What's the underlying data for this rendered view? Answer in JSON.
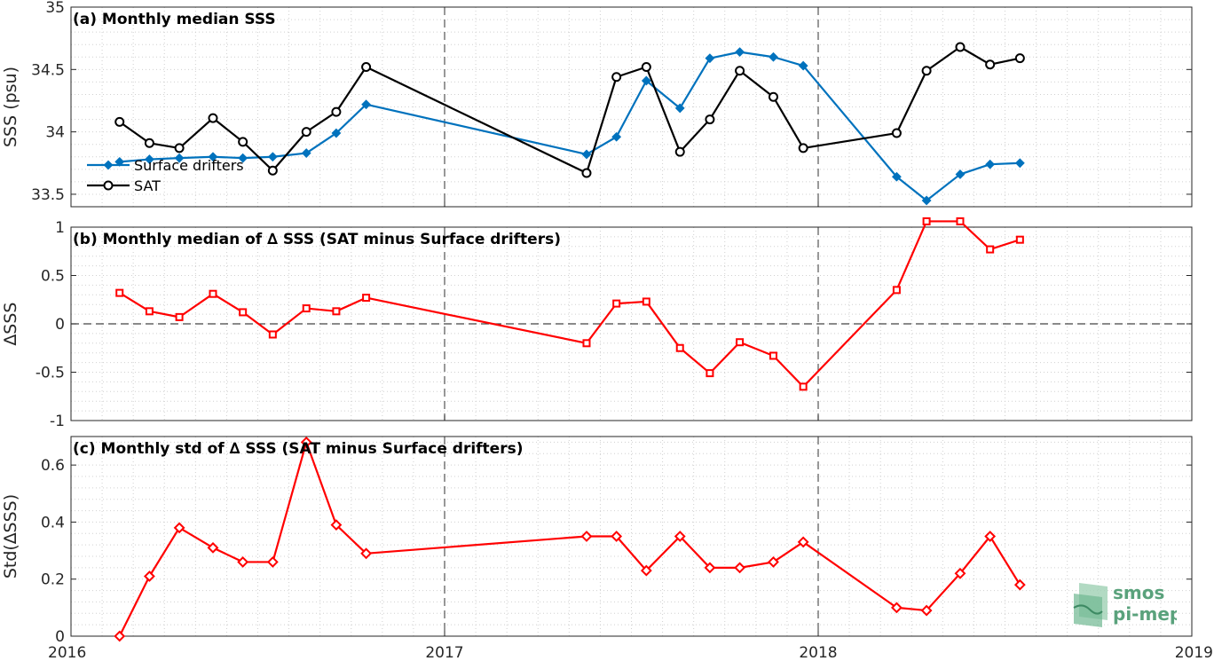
{
  "logo": {
    "line1": "smos",
    "line2": "pi-mep"
  },
  "chart_data": [
    {
      "type": "line",
      "title": "(a) Monthly median SSS",
      "ylabel": "SSS (psu)",
      "xlim": [
        2016,
        2019
      ],
      "x_ticks": [
        2016,
        2017,
        2018,
        2019
      ],
      "x_tick_labels": [
        "2016",
        "2017",
        "2018",
        "2019"
      ],
      "ylim": [
        33.4,
        35
      ],
      "y_ticks": [
        33.5,
        34,
        34.5,
        35
      ],
      "y_tick_labels": [
        "33.5",
        "34",
        "34.5",
        "35"
      ],
      "grid": true,
      "legend": "lower-left",
      "x": [
        2016.13,
        2016.21,
        2016.29,
        2016.38,
        2016.46,
        2016.54,
        2016.63,
        2016.71,
        2016.79,
        2017.38,
        2017.46,
        2017.54,
        2017.63,
        2017.71,
        2017.79,
        2017.88,
        2017.96,
        2018.21,
        2018.29,
        2018.38,
        2018.46,
        2018.54
      ],
      "series": [
        {
          "name": "Surface drifters",
          "color": "#0072bd",
          "marker": "diamond",
          "values": [
            33.76,
            33.78,
            33.79,
            33.8,
            33.79,
            33.8,
            33.83,
            33.99,
            34.22,
            33.82,
            33.96,
            34.41,
            34.19,
            34.59,
            34.64,
            34.6,
            34.53,
            33.64,
            33.45,
            33.66,
            33.74,
            33.75
          ]
        },
        {
          "name": "SAT",
          "color": "#000000",
          "marker": "circle",
          "values": [
            34.08,
            33.91,
            33.87,
            34.11,
            33.92,
            33.69,
            34.0,
            34.16,
            34.52,
            33.67,
            34.44,
            34.52,
            33.84,
            34.1,
            34.49,
            34.28,
            33.87,
            33.99,
            34.49,
            34.68,
            34.54,
            34.59
          ]
        }
      ]
    },
    {
      "type": "line",
      "title": "(b) Monthly median of ∆ SSS (SAT minus Surface drifters)",
      "ylabel": "∆SSS",
      "xlim": [
        2016,
        2019
      ],
      "ylim": [
        -1,
        1
      ],
      "y_ticks": [
        -1,
        -0.5,
        0,
        0.5,
        1
      ],
      "y_tick_labels": [
        "-1",
        "-0.5",
        "0",
        "0.5",
        "1"
      ],
      "grid": true,
      "reference_line": 0,
      "x": [
        2016.13,
        2016.21,
        2016.29,
        2016.38,
        2016.46,
        2016.54,
        2016.63,
        2016.71,
        2016.79,
        2017.38,
        2017.46,
        2017.54,
        2017.63,
        2017.71,
        2017.79,
        2017.88,
        2017.96,
        2018.21,
        2018.29,
        2018.38,
        2018.46,
        2018.54
      ],
      "series": [
        {
          "color": "#ff0000",
          "marker": "square",
          "values": [
            0.32,
            0.13,
            0.07,
            0.31,
            0.12,
            -0.11,
            0.16,
            0.13,
            0.27,
            -0.2,
            0.21,
            0.23,
            -0.25,
            -0.51,
            -0.19,
            -0.33,
            -0.65,
            0.35,
            1.06,
            1.06,
            0.77,
            0.87
          ]
        }
      ]
    },
    {
      "type": "line",
      "title": "(c) Monthly std of ∆ SSS (SAT minus Surface drifters)",
      "ylabel": "Std(∆SSS)",
      "xlim": [
        2016,
        2019
      ],
      "ylim": [
        0,
        0.7
      ],
      "y_ticks": [
        0,
        0.2,
        0.4,
        0.6
      ],
      "y_tick_labels": [
        "0",
        "0.2",
        "0.4",
        "0.6"
      ],
      "grid": true,
      "x": [
        2016.13,
        2016.21,
        2016.29,
        2016.38,
        2016.46,
        2016.54,
        2016.63,
        2016.71,
        2016.79,
        2017.38,
        2017.46,
        2017.54,
        2017.63,
        2017.71,
        2017.79,
        2017.88,
        2017.96,
        2018.21,
        2018.29,
        2018.38,
        2018.46,
        2018.54
      ],
      "series": [
        {
          "color": "#ff0000",
          "marker": "diamond",
          "values": [
            0.0,
            0.21,
            0.38,
            0.31,
            0.26,
            0.26,
            0.68,
            0.39,
            0.29,
            0.35,
            0.35,
            0.23,
            0.35,
            0.24,
            0.24,
            0.26,
            0.33,
            0.1,
            0.09,
            0.22,
            0.35,
            0.18
          ]
        }
      ]
    }
  ]
}
